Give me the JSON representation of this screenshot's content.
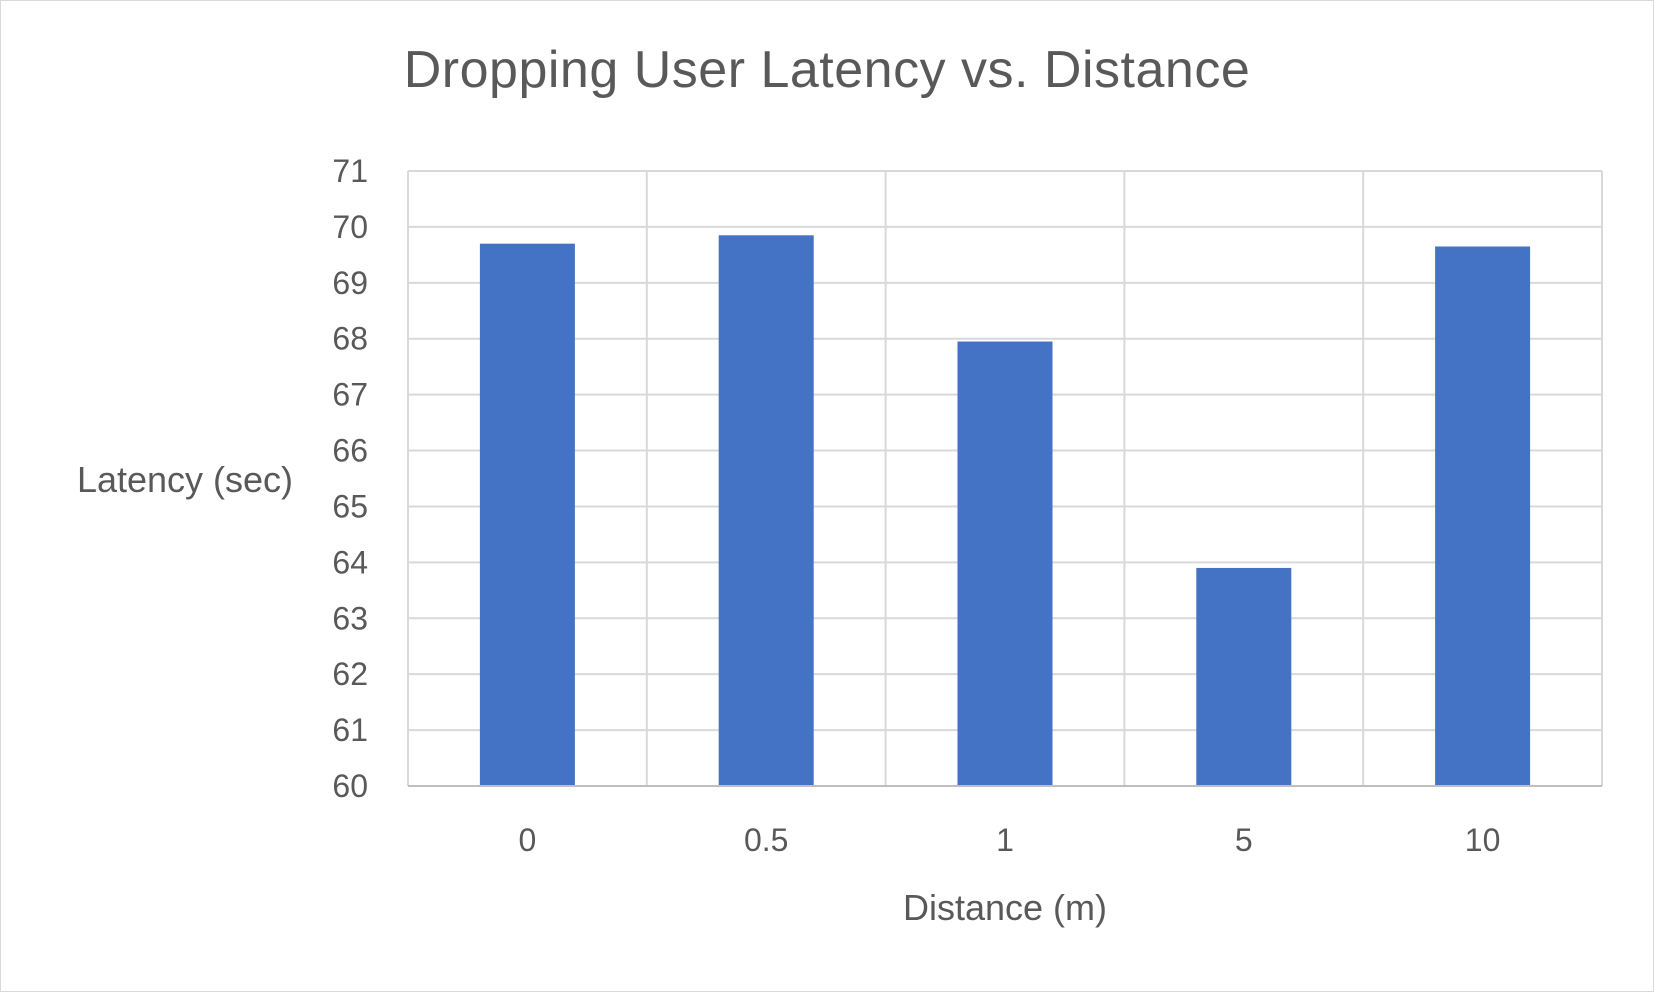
{
  "chart_data": {
    "type": "bar",
    "title": "Dropping User Latency vs. Distance",
    "xlabel": "Distance (m)",
    "ylabel": "Latency (sec)",
    "categories": [
      "0",
      "0.5",
      "1",
      "5",
      "10"
    ],
    "values": [
      69.7,
      69.85,
      67.95,
      63.9,
      69.65
    ],
    "ylim": [
      60,
      71
    ],
    "yticks": [
      60,
      61,
      62,
      63,
      64,
      65,
      66,
      67,
      68,
      69,
      70,
      71
    ],
    "grid": "on",
    "legend": "none",
    "colors": {
      "bar": "#4472C4",
      "grid": "#d9d9d9",
      "text": "#595959"
    }
  }
}
